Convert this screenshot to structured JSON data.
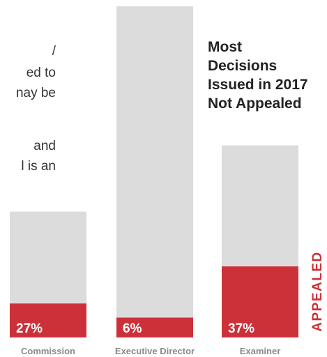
{
  "intro_fragments": [
    "/",
    "ed to",
    "nay be",
    "",
    "and",
    "l is an"
  ],
  "chart_data": {
    "type": "bar",
    "title": "Most Decisions Issued in 2017 Not Appealed",
    "title_lines": [
      "Most",
      "Decisions",
      "Issued in 2017",
      "Not Appealed"
    ],
    "categories": [
      "Commission",
      "Executive Director",
      "Examiner"
    ],
    "series": [
      {
        "name": "APPEALED",
        "values_label": [
          "27%",
          "6%",
          "37%"
        ],
        "values": [
          27,
          6,
          37
        ]
      }
    ],
    "totals": [
      100,
      100,
      100
    ],
    "relative_totals": [
      0.38,
      1.0,
      0.58
    ],
    "side_label": "APPEALED",
    "colors": {
      "appealed": "#cc3139",
      "not_appealed": "#dcdcdc",
      "label_text": "#ffffff",
      "category_text": "#8a8a8a"
    },
    "grid": false,
    "legend": "none"
  }
}
